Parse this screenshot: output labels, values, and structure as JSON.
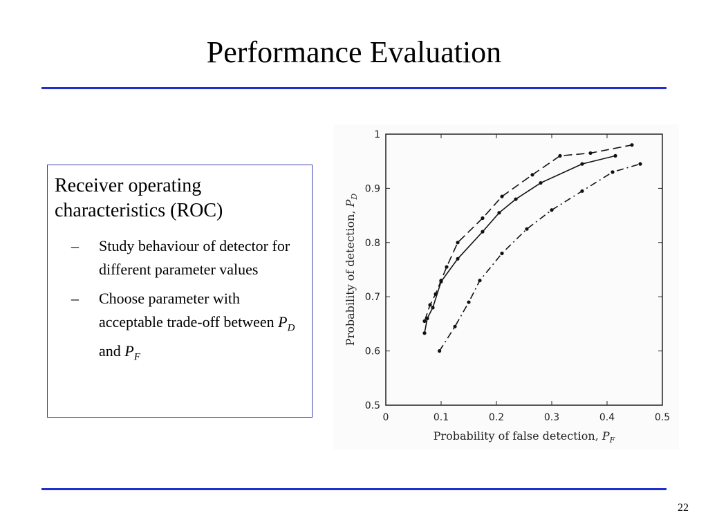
{
  "slide": {
    "title": "Performance Evaluation",
    "rule_color": "#1f2fcf",
    "heading": "Receiver operating characteristics (ROC)",
    "bullets": [
      {
        "dash": "–",
        "text": "Study behaviour of detector for different parameter values"
      },
      {
        "dash": "–",
        "pre": "Choose parameter with acceptable trade-off between ",
        "p1": "P",
        "sub1": "D",
        "mid": " and ",
        "p2": "P",
        "sub2": "F"
      }
    ],
    "page_number": "22"
  },
  "chart_data": {
    "type": "line",
    "xlabel": "Probability of false detection, ",
    "xlabel_symbol": "P",
    "xlabel_sub": "F",
    "ylabel": "Probability of detection, ",
    "ylabel_symbol": "P",
    "ylabel_sub": "D",
    "xlim": [
      0,
      0.5
    ],
    "ylim": [
      0.5,
      1
    ],
    "x_ticks": [
      "0",
      "0.1",
      "0.2",
      "0.3",
      "0.4",
      "0.5"
    ],
    "y_ticks": [
      "0.5",
      "0.6",
      "0.7",
      "0.8",
      "0.9",
      "1"
    ],
    "grid": false,
    "series": [
      {
        "style": "dashed",
        "x": [
          0.07,
          0.08,
          0.09,
          0.1,
          0.11,
          0.13,
          0.175,
          0.21,
          0.265,
          0.315,
          0.37,
          0.445
        ],
        "y": [
          0.655,
          0.685,
          0.705,
          0.73,
          0.755,
          0.8,
          0.845,
          0.885,
          0.925,
          0.96,
          0.965,
          0.98
        ]
      },
      {
        "style": "solid",
        "x": [
          0.07,
          0.075,
          0.085,
          0.1,
          0.13,
          0.175,
          0.205,
          0.235,
          0.28,
          0.355,
          0.415
        ],
        "y": [
          0.633,
          0.66,
          0.68,
          0.728,
          0.77,
          0.82,
          0.855,
          0.88,
          0.91,
          0.945,
          0.96
        ]
      },
      {
        "style": "dashdot",
        "x": [
          0.097,
          0.125,
          0.15,
          0.17,
          0.21,
          0.255,
          0.3,
          0.355,
          0.41,
          0.46
        ],
        "y": [
          0.6,
          0.645,
          0.69,
          0.73,
          0.78,
          0.825,
          0.86,
          0.895,
          0.93,
          0.945
        ]
      }
    ]
  }
}
